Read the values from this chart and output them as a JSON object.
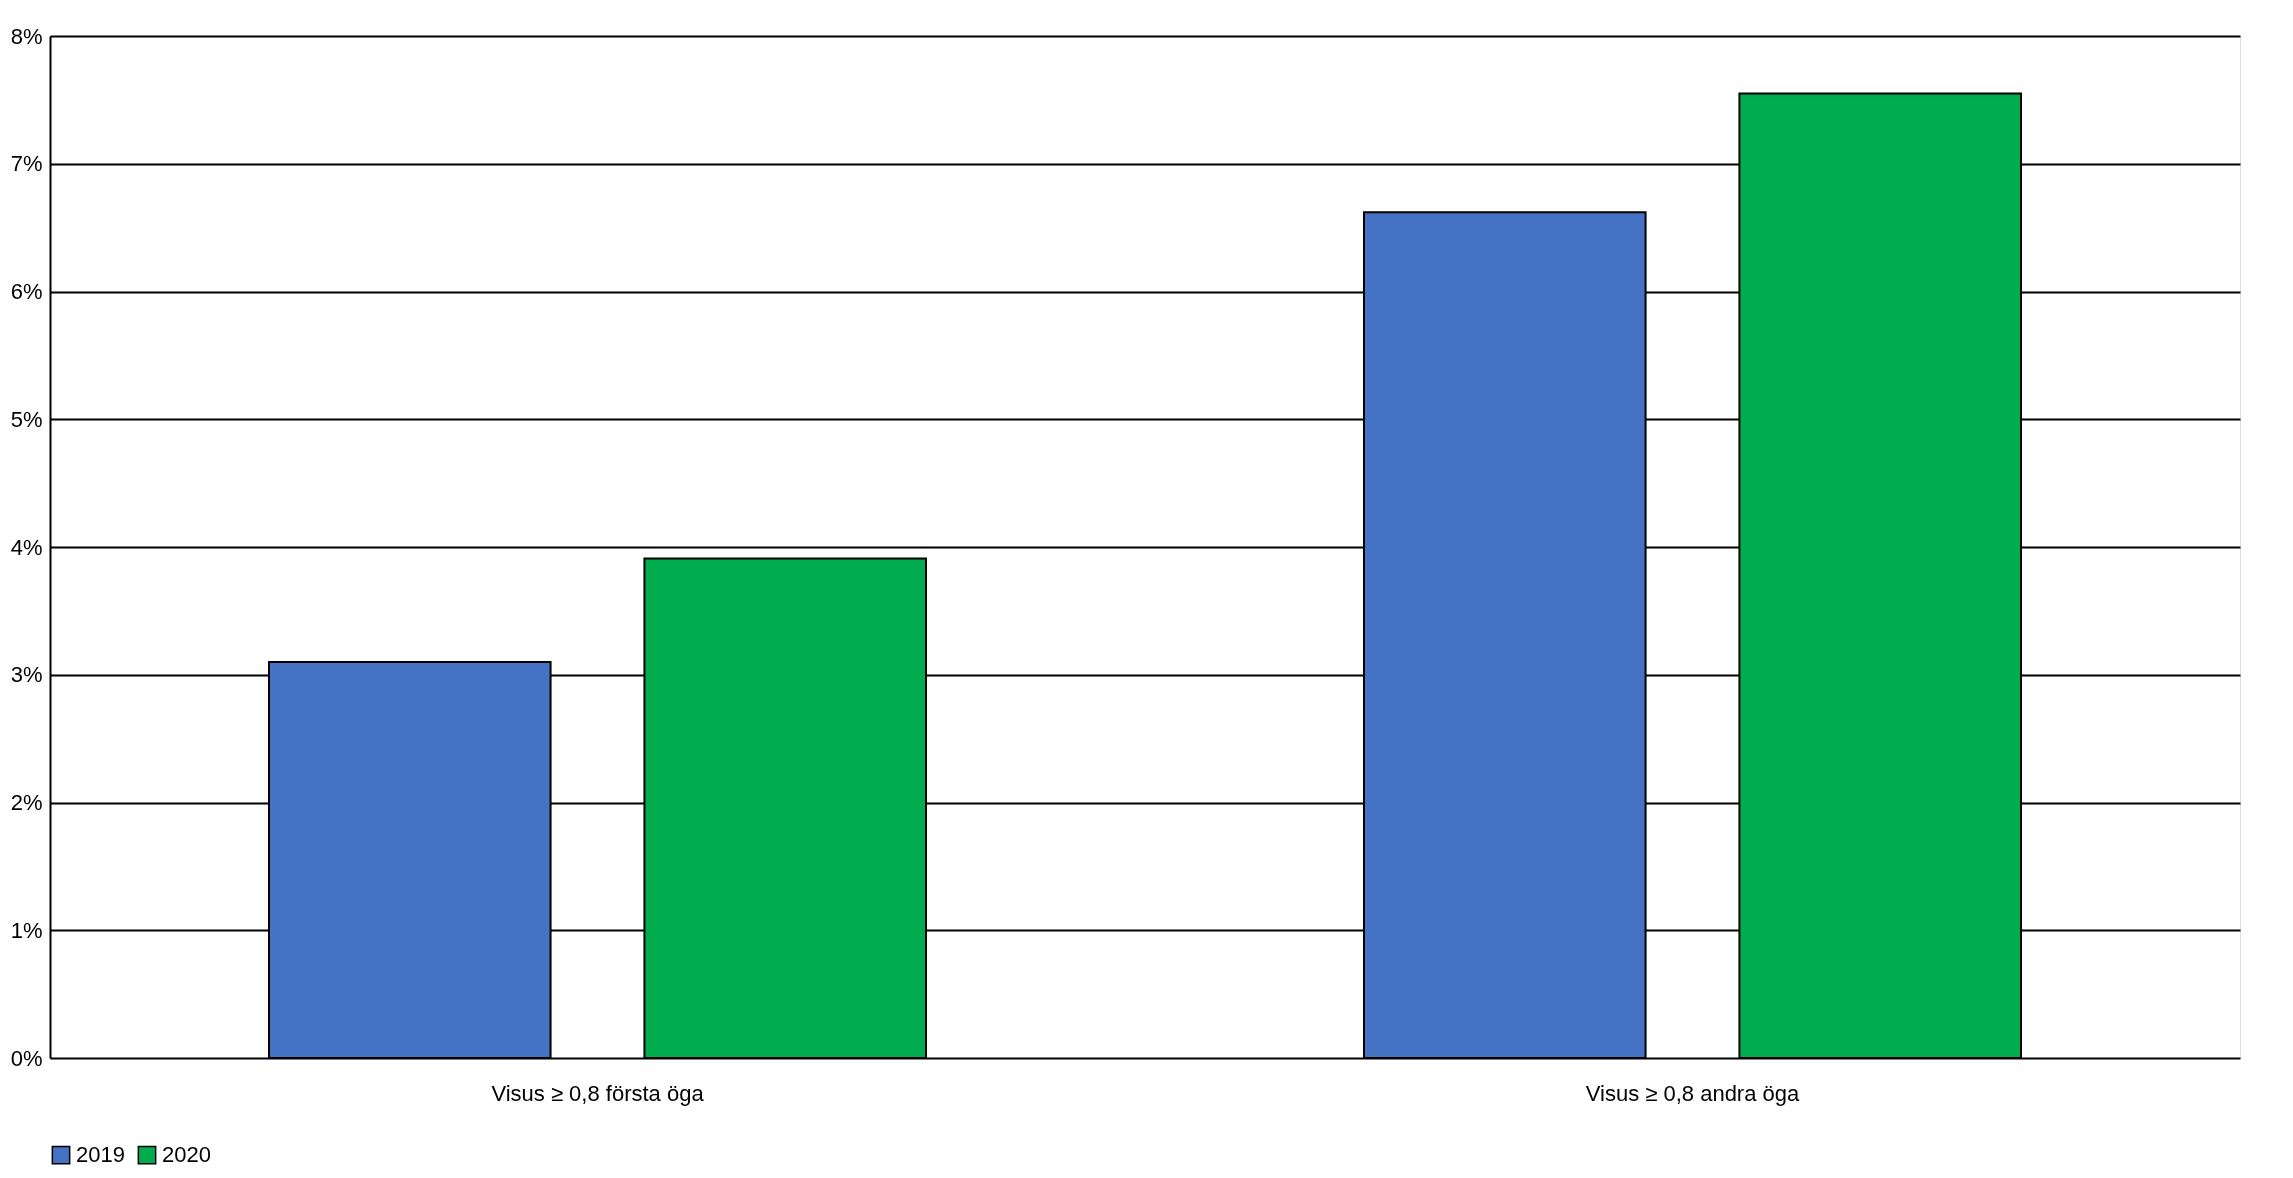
{
  "chart_data": {
    "type": "bar",
    "categories": [
      "Visus  ≥ 0,8 första öga",
      "Visus  ≥ 0,8 andra öga"
    ],
    "series": [
      {
        "name": "2019",
        "color": "#4472c4",
        "values": [
          3.1,
          6.62
        ]
      },
      {
        "name": "2020",
        "color": "#00ad4e",
        "values": [
          3.91,
          7.55
        ]
      }
    ],
    "ylim": [
      0,
      8
    ],
    "yticks": [
      {
        "value": 0,
        "label": "0%"
      },
      {
        "value": 1,
        "label": "1%"
      },
      {
        "value": 2,
        "label": "2%"
      },
      {
        "value": 3,
        "label": "3%"
      },
      {
        "value": 4,
        "label": "4%"
      },
      {
        "value": 5,
        "label": "5%"
      },
      {
        "value": 6,
        "label": "6%"
      },
      {
        "value": 7,
        "label": "7%"
      },
      {
        "value": 8,
        "label": "8%"
      }
    ],
    "grid": "y",
    "legend": "bottom"
  }
}
